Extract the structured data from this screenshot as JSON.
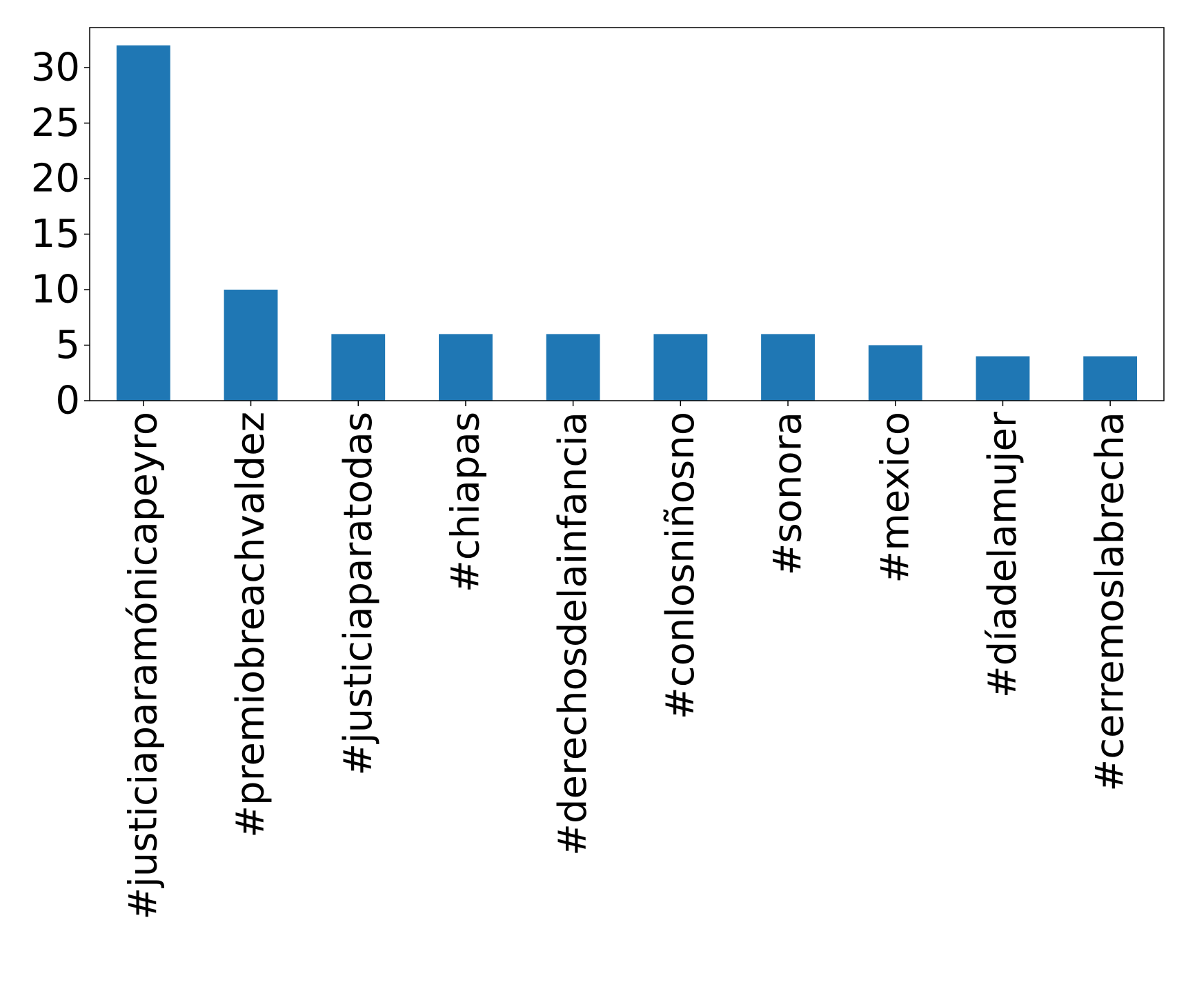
{
  "chart_data": {
    "type": "bar",
    "title": "",
    "xlabel": "",
    "ylabel": "",
    "categories": [
      "#justiciaparamónicapeyro",
      "#premiobreachvaldez",
      "#justiciaparatodas",
      "#chiapas",
      "#derechosdelainfancia",
      "#conlosniñosno",
      "#sonora",
      "#mexico",
      "#díadelamujer",
      "#cerremoslabrecha"
    ],
    "values": [
      32,
      10,
      6,
      6,
      6,
      6,
      6,
      5,
      4,
      4
    ],
    "yticks": [
      0,
      5,
      10,
      15,
      20,
      25,
      30
    ],
    "ylim": [
      0,
      33.6
    ],
    "grid": false,
    "bar_color": "#1f77b4"
  }
}
